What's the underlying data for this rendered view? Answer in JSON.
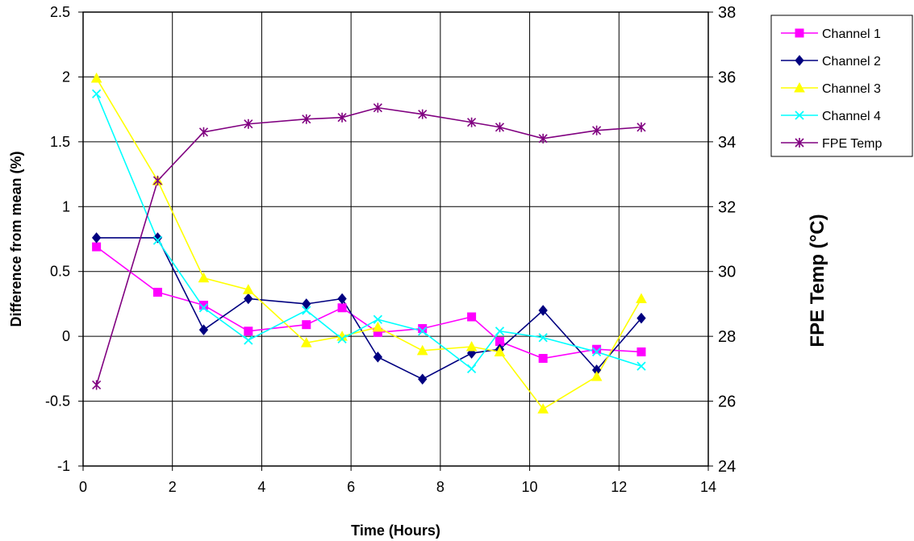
{
  "chart_data": {
    "type": "line",
    "title": "",
    "xlabel": "Time (Hours)",
    "ylabel": "Difference from mean (%)",
    "y2label": "FPE Temp (°C)",
    "xlim": [
      0,
      14
    ],
    "ylim": [
      -1,
      2.5
    ],
    "y2lim": [
      24,
      38
    ],
    "x_ticks": [
      "0",
      "2",
      "4",
      "6",
      "8",
      "10",
      "12",
      "14"
    ],
    "y_ticks": [
      "-1",
      "-0.5",
      "0",
      "0.5",
      "1",
      "1.5",
      "2",
      "2.5"
    ],
    "y2_ticks": [
      "24",
      "26",
      "28",
      "30",
      "32",
      "34",
      "36",
      "38"
    ],
    "grid": true,
    "legend_position": "right",
    "x": [
      0.3,
      1.67,
      2.7,
      3.7,
      5.0,
      5.8,
      6.6,
      7.6,
      8.7,
      9.33,
      10.3,
      11.5,
      12.5
    ],
    "series": [
      {
        "name": "Channel 1",
        "axis": "left",
        "color": "#FF00FF",
        "marker": "square",
        "values": [
          0.69,
          0.34,
          0.24,
          0.04,
          0.09,
          0.22,
          0.03,
          0.06,
          0.15,
          -0.04,
          -0.17,
          -0.1,
          -0.12
        ]
      },
      {
        "name": "Channel 2",
        "axis": "left",
        "color": "#000080",
        "marker": "diamond",
        "values": [
          0.76,
          0.76,
          0.05,
          0.29,
          0.25,
          0.29,
          -0.16,
          -0.33,
          -0.13,
          -0.1,
          0.2,
          -0.26,
          0.14
        ]
      },
      {
        "name": "Channel 3",
        "axis": "left",
        "color": "#FFFF00",
        "marker": "triangle",
        "values": [
          1.99,
          1.2,
          0.45,
          0.36,
          -0.05,
          0.0,
          0.07,
          -0.11,
          -0.08,
          -0.12,
          -0.56,
          -0.31,
          0.29
        ]
      },
      {
        "name": "Channel 4",
        "axis": "left",
        "color": "#00FFFF",
        "marker": "x",
        "values": [
          1.87,
          0.74,
          0.22,
          -0.03,
          0.2,
          -0.02,
          0.13,
          0.04,
          -0.25,
          0.04,
          -0.01,
          -0.12,
          -0.23
        ]
      },
      {
        "name": "FPE Temp",
        "axis": "right",
        "color": "#800080",
        "marker": "star",
        "values": [
          26.5,
          32.8,
          34.3,
          34.55,
          34.7,
          34.75,
          35.05,
          34.85,
          34.6,
          34.45,
          34.1,
          34.35,
          34.45
        ]
      }
    ]
  }
}
